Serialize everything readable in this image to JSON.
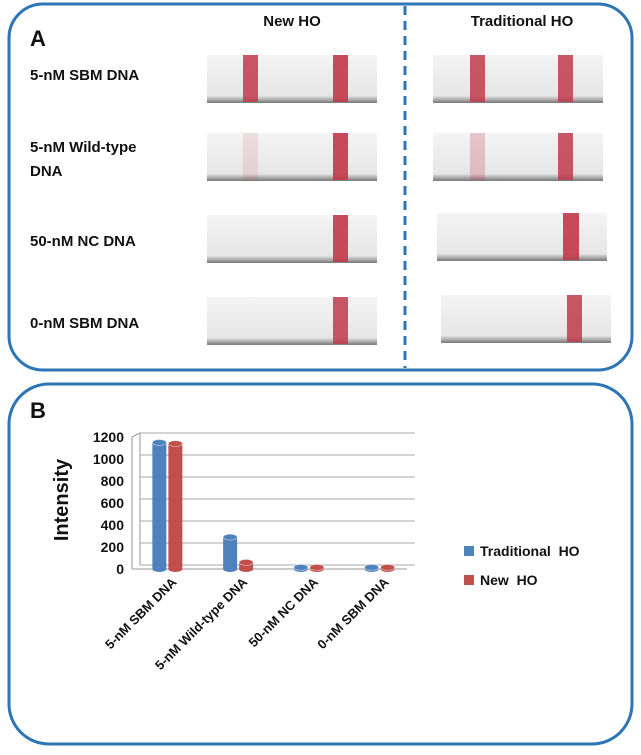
{
  "panel_a": {
    "label": "A",
    "columns": [
      "New HO",
      "Traditional HO"
    ],
    "rows": [
      "5-nM SBM DNA",
      "5-nM Wild-type DNA",
      "50-nM NC DNA",
      "0-nM SBM DNA"
    ]
  },
  "chart_data": {
    "type": "bar",
    "label": "B",
    "y_label": "Intensity",
    "categories": [
      "5-nM SBM DNA",
      "5-nM Wild-type DNA",
      "50-nM NC DNA",
      "0-nM SBM DNA"
    ],
    "series": [
      {
        "name": "Traditional  HO",
        "color": "#4f81bd",
        "values": [
          1150,
          290,
          15,
          15
        ]
      },
      {
        "name": "New  HO",
        "color": "#c0504d",
        "values": [
          1140,
          60,
          15,
          15
        ]
      }
    ],
    "ylim": [
      0,
      1200
    ],
    "yticks": [
      0,
      200,
      400,
      600,
      800,
      1000,
      1200
    ],
    "grid": true,
    "legend": "right"
  }
}
